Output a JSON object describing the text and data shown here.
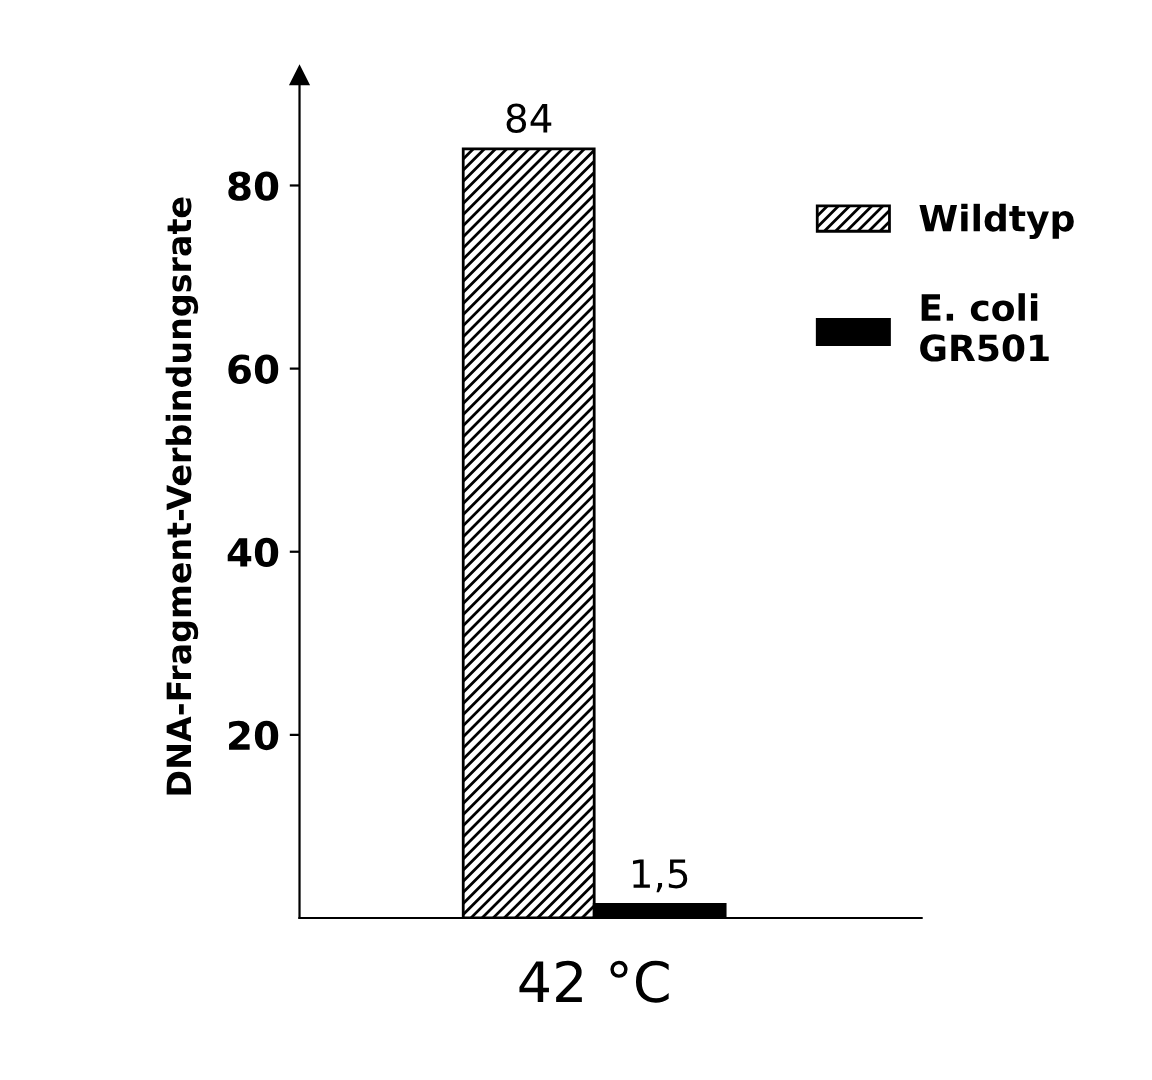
{
  "chart_data": {
    "type": "bar",
    "ylabel": "DNA-Fragment-Verbindungsrate",
    "categories": [
      "42 °C"
    ],
    "series": [
      {
        "name": "Wildtyp",
        "color": "#000000",
        "values": [
          84
        ],
        "value_labels": [
          "84"
        ]
      },
      {
        "name": "E. coli\nGR501",
        "color": "#000000",
        "values": [
          1.5
        ],
        "value_labels": [
          "1,5"
        ]
      }
    ],
    "ylim": [
      0,
      92
    ],
    "yticks": [
      20,
      40,
      60,
      80
    ],
    "legend": "right",
    "grid": false
  }
}
